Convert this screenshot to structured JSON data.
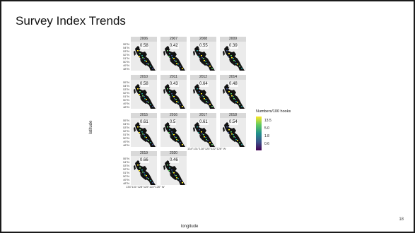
{
  "slide": {
    "title": "Survey Index Trends",
    "page_number": "18"
  },
  "figure": {
    "y_axis_label": "latitude",
    "x_axis_label": "longitude",
    "latitude_ticks": [
      "55°N",
      "54°N",
      "53°N",
      "52°N",
      "51°N",
      "50°N",
      "49°N",
      "48°N"
    ],
    "longitude_tick_text": "134°131°128°125°122°126° W",
    "legend": {
      "title": "Numbers/100 hooks",
      "labels": [
        "13.5",
        "5.0",
        "1.8",
        "0.6"
      ],
      "colors": [
        "#fde725",
        "#5ec962",
        "#21918c",
        "#3b528b",
        "#440154"
      ]
    },
    "colors": {
      "land": "#111111",
      "panel_bg": "#ebebeb",
      "strip_bg": "#d9d9d9"
    },
    "panels": [
      {
        "year": "2006",
        "value": "0.58"
      },
      {
        "year": "2007",
        "value": "0.42"
      },
      {
        "year": "2008",
        "value": "0.55"
      },
      {
        "year": "2009",
        "value": "0.39"
      },
      {
        "year": "2010",
        "value": "0.58"
      },
      {
        "year": "2011",
        "value": "0.43"
      },
      {
        "year": "2012",
        "value": "0.64"
      },
      {
        "year": "2014",
        "value": "0.48"
      },
      {
        "year": "2015",
        "value": "0.61"
      },
      {
        "year": "2016",
        "value": "0.5"
      },
      {
        "year": "2017",
        "value": "0.61"
      },
      {
        "year": "2018",
        "value": "0.54"
      },
      {
        "year": "2019",
        "value": "0.66"
      },
      {
        "year": "2020",
        "value": "0.46"
      }
    ]
  }
}
